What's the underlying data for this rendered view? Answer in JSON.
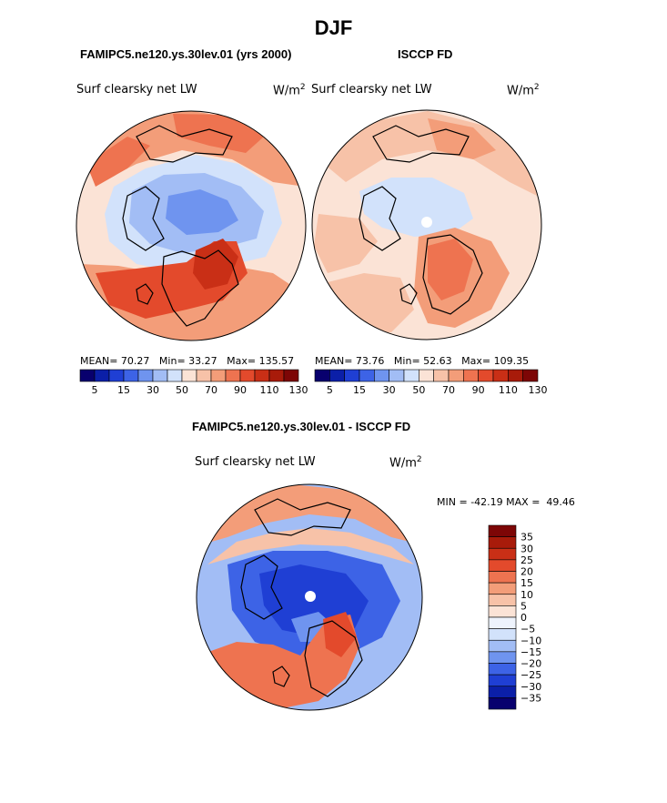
{
  "page_title": "DJF",
  "chart_data": [
    {
      "type": "heatmap",
      "projection": "north polar stereographic",
      "title": "FAMIPC5.ne120.ys.30lev.01 (yrs 2000)",
      "variable": "Surf clearsky net LW",
      "units_base": "W/m",
      "units_exp": "2",
      "stats": {
        "mean_label": "MEAN=",
        "mean": "70.27",
        "min_label": "Min=",
        "min": "33.27",
        "max_label": "Max=",
        "max": "135.57"
      },
      "contour_levels": [
        0,
        5,
        10,
        15,
        20,
        30,
        40,
        50,
        60,
        70,
        80,
        90,
        100,
        110,
        120,
        130,
        140
      ],
      "colorbar_ticks": [
        "5",
        "15",
        "30",
        "50",
        "70",
        "90",
        "110",
        "130"
      ]
    },
    {
      "type": "heatmap",
      "projection": "north polar stereographic",
      "title": "ISCCP FD",
      "variable": "Surf clearsky net LW",
      "units_base": "W/m",
      "units_exp": "2",
      "stats": {
        "mean_label": "MEAN=",
        "mean": "73.76",
        "min_label": "Min=",
        "min": "52.63",
        "max_label": "Max=",
        "max": "109.35"
      },
      "contour_levels": [
        0,
        5,
        10,
        15,
        20,
        30,
        40,
        50,
        60,
        70,
        80,
        90,
        100,
        110,
        120,
        130,
        140
      ],
      "colorbar_ticks": [
        "5",
        "15",
        "30",
        "50",
        "70",
        "90",
        "110",
        "130"
      ]
    },
    {
      "type": "heatmap",
      "projection": "north polar stereographic",
      "title": "FAMIPC5.ne120.ys.30lev.01 - ISCCP FD",
      "variable": "Surf clearsky net LW",
      "units_base": "W/m",
      "units_exp": "2",
      "stats": {
        "min_label": "MIN =",
        "min": "-42.19",
        "max_label": "MAX =",
        "max": "49.46"
      },
      "colorbar_ticks": [
        "35",
        "30",
        "25",
        "20",
        "15",
        "10",
        "5",
        "0",
        "−5",
        "−10",
        "−15",
        "−20",
        "−25",
        "−30",
        "−35"
      ]
    }
  ],
  "colors": {
    "abs_scale": [
      "#08006e",
      "#0b1fa8",
      "#1f3fd4",
      "#3d63e6",
      "#6f94ef",
      "#a2bdf5",
      "#d2e2fb",
      "#fbe3d6",
      "#f7c2a8",
      "#f39d79",
      "#ee7350",
      "#e34a2c",
      "#c92f16",
      "#a81b0a",
      "#7d0606"
    ],
    "diff_scale": [
      "#08006e",
      "#0b1fa8",
      "#1f3fd4",
      "#3d63e6",
      "#6f94ef",
      "#a2bdf5",
      "#d2e2fb",
      "#eef3fc",
      "#fbe3d6",
      "#f7c2a8",
      "#f39d79",
      "#ee7350",
      "#e34a2c",
      "#c92f16",
      "#a81b0a",
      "#7d0606"
    ],
    "pole_marker": "#ffffff"
  }
}
